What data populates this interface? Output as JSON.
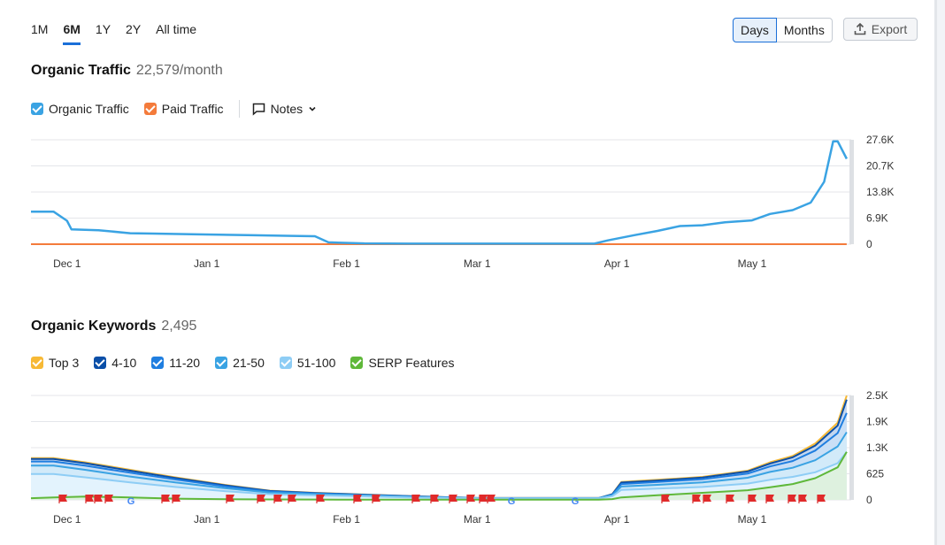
{
  "ranges": [
    "1M",
    "6M",
    "1Y",
    "2Y",
    "All time"
  ],
  "active_range": "6M",
  "granularity": {
    "days": "Days",
    "months": "Months",
    "active": "Days"
  },
  "export_label": "Export",
  "traffic": {
    "title": "Organic Traffic",
    "value": "22,579/month",
    "legend": [
      {
        "label": "Organic Traffic",
        "color": "#3aa3e3"
      },
      {
        "label": "Paid Traffic",
        "color": "#f47b3b"
      }
    ],
    "notes_label": "Notes"
  },
  "keywords": {
    "title": "Organic Keywords",
    "value": "2,495",
    "legend": [
      {
        "label": "Top 3",
        "color": "#f7b935"
      },
      {
        "label": "4-10",
        "color": "#0b4fa8"
      },
      {
        "label": "11-20",
        "color": "#1f7ee0"
      },
      {
        "label": "21-50",
        "color": "#3aa3e3"
      },
      {
        "label": "51-100",
        "color": "#8ecdf5"
      },
      {
        "label": "SERP Features",
        "color": "#5fb83a"
      }
    ]
  },
  "chart_data": [
    {
      "type": "line",
      "x": [
        "2023-11-23",
        "2023-11-28",
        "2023-12-01",
        "2023-12-02",
        "2023-12-08",
        "2023-12-15",
        "2023-12-20",
        "2023-12-30",
        "2024-01-10",
        "2024-01-20",
        "2024-01-25",
        "2024-01-28",
        "2024-02-05",
        "2024-02-15",
        "2024-03-01",
        "2024-03-15",
        "2024-03-27",
        "2024-03-30",
        "2024-04-05",
        "2024-04-10",
        "2024-04-15",
        "2024-04-20",
        "2024-04-25",
        "2024-05-01",
        "2024-05-05",
        "2024-05-10",
        "2024-05-14",
        "2024-05-17",
        "2024-05-19",
        "2024-05-20",
        "2024-05-22"
      ],
      "xtick_labels": [
        "Dec 1",
        "Jan 1",
        "Feb 1",
        "Mar 1",
        "Apr 1",
        "May 1"
      ],
      "ytick_labels": [
        "0",
        "6.9K",
        "13.8K",
        "20.7K",
        "27.6K"
      ],
      "ylim": [
        0,
        27600
      ],
      "series": [
        {
          "name": "Organic Traffic",
          "color": "#3aa3e3",
          "values": [
            8600,
            8600,
            6200,
            3900,
            3700,
            2900,
            2800,
            2600,
            2400,
            2200,
            2100,
            500,
            200,
            150,
            150,
            150,
            150,
            1000,
            2400,
            3500,
            4800,
            5000,
            5800,
            6300,
            8000,
            9000,
            11000,
            16500,
            27200,
            27200,
            22579
          ]
        },
        {
          "name": "Paid Traffic",
          "color": "#f47b3b",
          "values": [
            0,
            0,
            0,
            0,
            0,
            0,
            0,
            0,
            0,
            0,
            0,
            0,
            0,
            0,
            0,
            0,
            0,
            0,
            0,
            0,
            0,
            0,
            0,
            0,
            0,
            0,
            0,
            0,
            0,
            0,
            0
          ]
        }
      ]
    },
    {
      "type": "area",
      "x": [
        "2023-11-23",
        "2023-11-28",
        "2023-12-05",
        "2023-12-15",
        "2023-12-25",
        "2024-01-05",
        "2024-01-15",
        "2024-01-25",
        "2024-02-05",
        "2024-02-15",
        "2024-03-01",
        "2024-03-15",
        "2024-03-28",
        "2024-03-31",
        "2024-04-02",
        "2024-04-10",
        "2024-04-20",
        "2024-04-30",
        "2024-05-05",
        "2024-05-10",
        "2024-05-15",
        "2024-05-20",
        "2024-05-22"
      ],
      "xtick_labels": [
        "Dec 1",
        "Jan 1",
        "Feb 1",
        "Mar 1",
        "Apr 1",
        "May 1"
      ],
      "ytick_labels": [
        "0",
        "625",
        "1.3K",
        "1.9K",
        "2.5K"
      ],
      "ylim": [
        0,
        2500
      ],
      "series": [
        {
          "name": "Top 3",
          "color": "#f7b935",
          "values": [
            1000,
            1000,
            900,
            720,
            540,
            360,
            220,
            170,
            130,
            90,
            45,
            45,
            45,
            140,
            430,
            480,
            550,
            700,
            900,
            1050,
            1350,
            1850,
            2495
          ]
        },
        {
          "name": "4-10",
          "color": "#0b4fa8",
          "values": [
            980,
            980,
            880,
            700,
            525,
            350,
            215,
            165,
            125,
            88,
            44,
            44,
            44,
            135,
            415,
            465,
            535,
            680,
            870,
            1020,
            1300,
            1780,
            2400
          ]
        },
        {
          "name": "11-20",
          "color": "#1f7ee0",
          "values": [
            920,
            920,
            820,
            650,
            490,
            325,
            200,
            155,
            118,
            82,
            42,
            42,
            42,
            125,
            380,
            430,
            495,
            630,
            800,
            930,
            1180,
            1600,
            2080
          ]
        },
        {
          "name": "21-50",
          "color": "#3aa3e3",
          "values": [
            820,
            820,
            720,
            560,
            420,
            280,
            175,
            138,
            105,
            74,
            40,
            40,
            40,
            110,
            320,
            360,
            420,
            530,
            670,
            770,
            950,
            1280,
            1620
          ]
        },
        {
          "name": "51-100",
          "color": "#8ecdf5",
          "values": [
            620,
            620,
            540,
            420,
            310,
            210,
            135,
            108,
            85,
            60,
            35,
            35,
            35,
            90,
            240,
            270,
            310,
            390,
            480,
            550,
            660,
            880,
            1150
          ]
        },
        {
          "name": "SERP Features",
          "color": "#5fb83a",
          "values": [
            40,
            60,
            80,
            60,
            30,
            15,
            10,
            8,
            5,
            5,
            5,
            5,
            5,
            20,
            60,
            110,
            170,
            230,
            300,
            380,
            520,
            780,
            1150
          ]
        }
      ]
    }
  ]
}
